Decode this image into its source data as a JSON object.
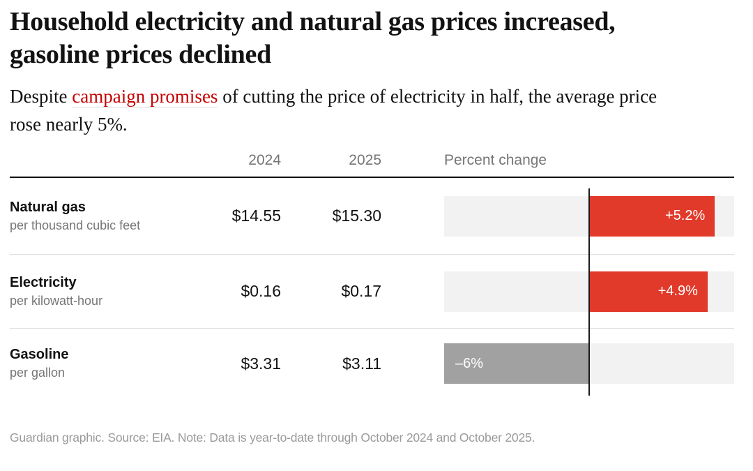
{
  "page": {
    "title": "Household electricity and natural gas prices increased, gasoline prices declined",
    "standfirst": {
      "prefix": "Despite ",
      "link_text": "campaign promises",
      "suffix": " of cutting the price of electricity in half, the average price rose nearly 5%."
    },
    "footer_note": "Guardian graphic. Source: EIA. Note: Data is year-to-date through October 2024 and October 2025."
  },
  "table": {
    "col_2024": "2024",
    "col_2025": "2025",
    "col_percent": "Percent change"
  },
  "chart_data": {
    "type": "bar",
    "orientation": "horizontal",
    "title": "Household electricity and natural gas prices increased, gasoline prices declined",
    "axis_range": [
      -6,
      6
    ],
    "baseline": 0,
    "value_unit": "percent",
    "categories": [
      "Natural gas",
      "Electricity",
      "Gasoline"
    ],
    "rows": [
      {
        "name": "Natural gas",
        "unit_label": "per thousand cubic feet",
        "price_2024": "$14.55",
        "price_2025": "$15.30",
        "percent_change": 5.2,
        "bar_label": "+5.2%"
      },
      {
        "name": "Electricity",
        "unit_label": "per kilowatt-hour",
        "price_2024": "$0.16",
        "price_2025": "$0.17",
        "percent_change": 4.9,
        "bar_label": "+4.9%"
      },
      {
        "name": "Gasoline",
        "unit_label": "per gallon",
        "price_2024": "$3.31",
        "price_2025": "$3.11",
        "percent_change": -6,
        "bar_label": "–6%"
      }
    ],
    "colors": {
      "positive_bar": "#e23a2a",
      "negative_bar": "#a1a1a1",
      "track": "#f2f2f2",
      "zero_line": "#1a1a1a"
    },
    "legend": "none",
    "grid": false
  },
  "colors": {
    "link_red": "#c70000",
    "text_dark": "#121212",
    "text_gray": "#767676",
    "footer_gray": "#9a9a9a",
    "divider": "#dcdcdc",
    "header_rule": "#121212"
  }
}
